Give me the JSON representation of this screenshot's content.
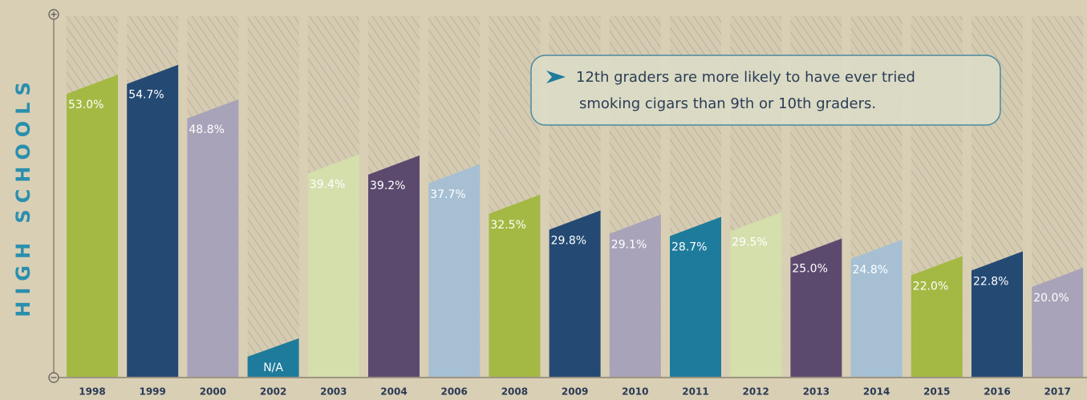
{
  "chart_data": {
    "type": "bar",
    "y_label": "HIGH SCHOOLS",
    "annotation": [
      "12th graders are more likely to have ever tried",
      "smoking cigars than 9th or 10th graders."
    ],
    "categories": [
      "1998",
      "1999",
      "2000",
      "2002",
      "2003",
      "2004",
      "2006",
      "2008",
      "2009",
      "2010",
      "2011",
      "2012",
      "2013",
      "2014",
      "2015",
      "2016",
      "2017"
    ],
    "values": [
      53.0,
      54.7,
      48.8,
      null,
      39.4,
      39.2,
      37.7,
      32.5,
      29.8,
      29.1,
      28.7,
      29.5,
      25.0,
      24.8,
      22.0,
      22.8,
      20.0
    ],
    "value_labels": [
      "53.0%",
      "54.7%",
      "48.8%",
      "N/A",
      "39.4%",
      "39.2%",
      "37.7%",
      "32.5%",
      "29.8%",
      "29.1%",
      "28.7%",
      "29.5%",
      "25.0%",
      "24.8%",
      "22.0%",
      "22.8%",
      "20.0%"
    ],
    "colors": [
      "#a3b944",
      "#244a74",
      "#a9a3b9",
      "#1f7b9b",
      "#d4dfac",
      "#5b4a6e",
      "#a6bfd3",
      "#a3b944",
      "#244a74",
      "#a9a3b9",
      "#1f7b9b",
      "#d4dfac",
      "#5b4a6e",
      "#a6bfd3",
      "#a3b944",
      "#244a74",
      "#a9a3b9"
    ]
  }
}
